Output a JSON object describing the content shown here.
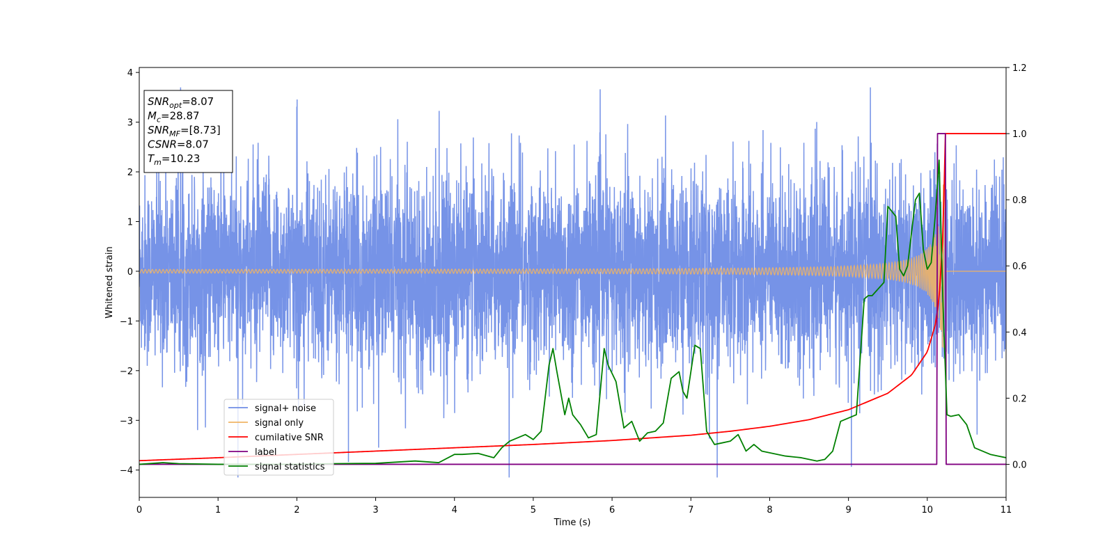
{
  "chart_data": {
    "type": "line",
    "xlabel": "Time (s)",
    "ylabel": "Whitened strain",
    "xlim": [
      0,
      11
    ],
    "ylim_left": [
      -4.55,
      4.1
    ],
    "ylim_right": [
      -0.1,
      1.2
    ],
    "x_ticks": [
      0,
      1,
      2,
      3,
      4,
      5,
      6,
      7,
      8,
      9,
      10,
      11
    ],
    "y_ticks_left": [
      -4,
      -3,
      -2,
      -1,
      0,
      1,
      2,
      3,
      4
    ],
    "y_ticks_right": [
      0.0,
      0.2,
      0.4,
      0.6,
      0.8,
      1.0,
      1.2
    ],
    "y_tick_labels_right": [
      "0.0",
      "0.2",
      "0.4",
      "0.6",
      "0.8",
      "1.0",
      "1.2"
    ],
    "grid": false,
    "legend_position": "lower-left",
    "info_box": {
      "lines": [
        {
          "sym": "SNR",
          "sub": "opt",
          "value": "=8.07"
        },
        {
          "sym": "M",
          "sub": "c",
          "value": "=28.87"
        },
        {
          "sym": "SNR",
          "sub": "MF",
          "value": "=[8.73]"
        },
        {
          "sym": "CSNR",
          "sub": "",
          "value": "=8.07"
        },
        {
          "sym": "T",
          "sub": "m",
          "value": "=10.23"
        }
      ]
    },
    "series": [
      {
        "name": "signal+ noise",
        "color": "#6f8de6",
        "axis": "left",
        "description_kind": "whitened noise band approx. ±2.5 with spikes to ±3.7"
      },
      {
        "name": "signal only",
        "color": "#f0b465",
        "axis": "left",
        "chirp": {
          "start_time": 0,
          "merger_time": 10.23,
          "end_time": 10.26,
          "peak_amplitude": 2.7
        }
      },
      {
        "name": "cumilative SNR",
        "color": "#ff0000",
        "axis": "right",
        "x": [
          0,
          1,
          2,
          3,
          4,
          5,
          6,
          7,
          7.5,
          8,
          8.5,
          9,
          9.5,
          9.8,
          10,
          10.1,
          10.15,
          10.2,
          10.23,
          10.26,
          11
        ],
        "y": [
          0.011,
          0.02,
          0.03,
          0.04,
          0.05,
          0.06,
          0.072,
          0.088,
          0.1,
          0.115,
          0.135,
          0.165,
          0.215,
          0.27,
          0.34,
          0.42,
          0.5,
          0.7,
          1.0,
          1.0,
          1.0
        ]
      },
      {
        "name": "label",
        "color": "#800080",
        "axis": "right",
        "x": [
          0,
          10.12,
          10.13,
          10.23,
          10.24,
          11
        ],
        "y": [
          0,
          0,
          1,
          1,
          0,
          0
        ]
      },
      {
        "name": "signal statistics",
        "color": "#008000",
        "axis": "right",
        "x": [
          0,
          0.3,
          0.5,
          1,
          1.5,
          2,
          2.5,
          3,
          3.5,
          3.8,
          4.0,
          4.1,
          4.3,
          4.5,
          4.6,
          4.7,
          4.8,
          4.9,
          5.0,
          5.1,
          5.2,
          5.25,
          5.3,
          5.4,
          5.45,
          5.5,
          5.6,
          5.7,
          5.8,
          5.9,
          5.95,
          6.05,
          6.15,
          6.25,
          6.35,
          6.45,
          6.55,
          6.65,
          6.75,
          6.85,
          6.9,
          6.95,
          7.05,
          7.12,
          7.2,
          7.3,
          7.4,
          7.5,
          7.6,
          7.7,
          7.8,
          7.9,
          8.0,
          8.2,
          8.4,
          8.6,
          8.7,
          8.8,
          8.9,
          9.0,
          9.1,
          9.2,
          9.25,
          9.3,
          9.45,
          9.5,
          9.6,
          9.65,
          9.7,
          9.75,
          9.85,
          9.9,
          9.95,
          10.0,
          10.05,
          10.1,
          10.15,
          10.2,
          10.25,
          10.3,
          10.4,
          10.5,
          10.6,
          10.7,
          10.8,
          10.9,
          11
        ],
        "y": [
          0.0,
          0.005,
          0.002,
          0.0,
          0.0,
          0.0,
          0.002,
          0.003,
          0.01,
          0.005,
          0.03,
          0.03,
          0.033,
          0.02,
          0.05,
          0.07,
          0.08,
          0.09,
          0.075,
          0.1,
          0.3,
          0.35,
          0.28,
          0.15,
          0.2,
          0.15,
          0.12,
          0.08,
          0.09,
          0.35,
          0.3,
          0.25,
          0.11,
          0.13,
          0.07,
          0.095,
          0.1,
          0.125,
          0.26,
          0.28,
          0.22,
          0.2,
          0.36,
          0.35,
          0.1,
          0.06,
          0.065,
          0.07,
          0.09,
          0.04,
          0.06,
          0.04,
          0.035,
          0.025,
          0.02,
          0.01,
          0.015,
          0.04,
          0.13,
          0.14,
          0.15,
          0.5,
          0.51,
          0.51,
          0.55,
          0.78,
          0.75,
          0.59,
          0.57,
          0.6,
          0.8,
          0.82,
          0.65,
          0.59,
          0.61,
          0.75,
          0.92,
          0.48,
          0.15,
          0.145,
          0.15,
          0.12,
          0.05,
          0.04,
          0.03,
          0.025,
          0.02
        ]
      }
    ]
  }
}
